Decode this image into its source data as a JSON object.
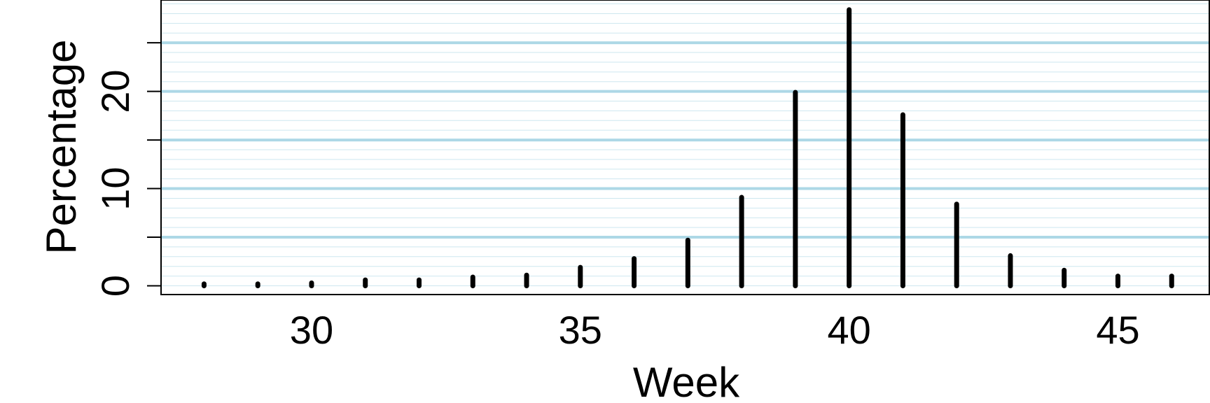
{
  "chart_data": {
    "type": "bar",
    "style": "spike",
    "title": "",
    "xlabel": "Week",
    "ylabel": "Percentage",
    "x": [
      28,
      29,
      30,
      31,
      32,
      33,
      34,
      35,
      36,
      37,
      38,
      39,
      40,
      41,
      42,
      43,
      44,
      45,
      46
    ],
    "values": [
      0.2,
      0.2,
      0.3,
      0.6,
      0.6,
      0.9,
      1.1,
      1.9,
      2.8,
      4.7,
      9.1,
      19.9,
      28.4,
      17.6,
      8.4,
      3.1,
      1.6,
      1.0,
      1.0
    ],
    "xlim": [
      27.2,
      46.7
    ],
    "ylim": [
      -0.9,
      29.4
    ],
    "x_ticks": [
      30,
      35,
      40,
      45
    ],
    "y_ticks": [
      0,
      5,
      10,
      15,
      20,
      25
    ],
    "y_tick_labels": [
      "0",
      "",
      "10",
      "",
      "20",
      ""
    ],
    "major_grid_y": [
      5,
      10,
      15,
      20,
      25
    ],
    "minor_grid_step": 1,
    "grid": true,
    "grid_color": "#add8e6",
    "bar_color": "#000000",
    "legend": "none"
  }
}
